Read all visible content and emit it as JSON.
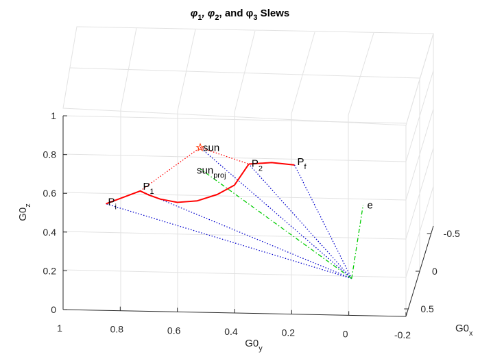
{
  "chart_data": {
    "type": "3d-line",
    "title": {
      "parts": [
        {
          "text": "φ",
          "sub": "1"
        },
        {
          "text": ", φ",
          "sub": "2"
        },
        {
          "text": ", and φ",
          "sub": "3"
        },
        {
          "text": " Slews",
          "sub": ""
        }
      ]
    },
    "xlabel": {
      "text": "G0",
      "sub": "x"
    },
    "ylabel": {
      "text": "G0",
      "sub": "y"
    },
    "zlabel": {
      "text": "G0",
      "sub": "z"
    },
    "x_ticks": [
      "-0.5",
      "0",
      "0.5"
    ],
    "y_ticks": [
      "1",
      "0.8",
      "0.6",
      "0.4",
      "0.2",
      "0",
      "-0.2"
    ],
    "z_ticks": [
      "0",
      "0.2",
      "0.4",
      "0.6",
      "0.8",
      "1"
    ],
    "xlim": [
      -0.6,
      0.6
    ],
    "ylim": [
      -0.2,
      1.0
    ],
    "zlim": [
      0,
      1
    ],
    "grid": true,
    "points": {
      "Pi": {
        "text": "P",
        "sub": "i",
        "y": 0.85,
        "z": 0.55
      },
      "P1": {
        "text": "P",
        "sub": "1",
        "y": 0.73,
        "z": 0.62
      },
      "sun": {
        "text": "sun",
        "sub": "",
        "y": 0.52,
        "z": 0.85
      },
      "sun_proj": {
        "text": "sun",
        "sub": "proj",
        "y": 0.52,
        "z": 0.74
      },
      "P2": {
        "text": "P",
        "sub": "2",
        "y": 0.35,
        "z": 0.77
      },
      "Pf": {
        "text": "P",
        "sub": "f",
        "y": 0.19,
        "z": 0.77
      },
      "e": {
        "text": "e",
        "sub": "",
        "y": -0.05,
        "z": 0.57
      },
      "origin": {
        "y": -0.01,
        "z": 0.19
      }
    },
    "series": [
      {
        "style": "solid",
        "color": "#ff0000",
        "values": [
          [
            0.85,
            0.55
          ],
          [
            0.73,
            0.62
          ]
        ]
      },
      {
        "style": "solid",
        "color": "#ff0000",
        "values": [
          [
            0.73,
            0.62
          ],
          [
            0.7,
            0.6
          ],
          [
            0.66,
            0.58
          ],
          [
            0.6,
            0.565
          ],
          [
            0.53,
            0.575
          ],
          [
            0.46,
            0.61
          ],
          [
            0.4,
            0.66
          ],
          [
            0.35,
            0.77
          ]
        ]
      },
      {
        "style": "solid",
        "color": "#ff0000",
        "values": [
          [
            0.35,
            0.77
          ],
          [
            0.27,
            0.78
          ],
          [
            0.19,
            0.77
          ]
        ]
      }
    ]
  }
}
